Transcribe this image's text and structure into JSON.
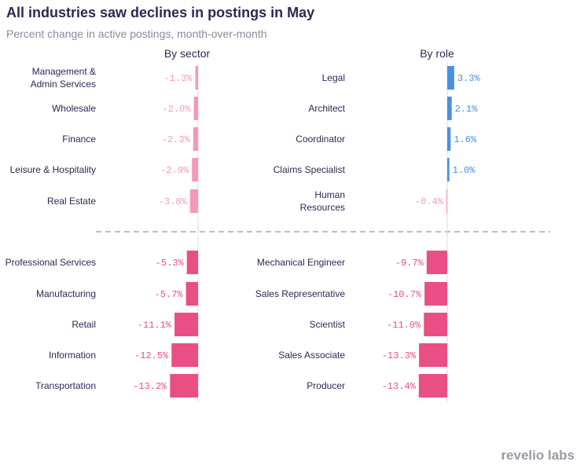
{
  "title": "All industries saw declines in postings in May",
  "subtitle": "Percent change in active postings, month-over-month",
  "logo": "revelio labs",
  "colors": {
    "small_negative": "#f49ab5",
    "large_negative": "#e94f84",
    "positive": "#4a90e2",
    "divider": "#999999",
    "axis": "#dddddd",
    "label": "#2a2a55"
  },
  "chart_data": [
    {
      "type": "bar",
      "orientation": "horizontal",
      "title": "By sector",
      "categories": [
        [
          "Management &",
          "Admin Services"
        ],
        [
          "Wholesale"
        ],
        [
          "Finance"
        ],
        [
          "Leisure & Hospitality"
        ],
        [
          "Real Estate"
        ],
        [
          "Professional Services"
        ],
        [
          "Manufacturing"
        ],
        [
          "Retail"
        ],
        [
          "Information"
        ],
        [
          "Transportation"
        ]
      ],
      "values": [
        -1.3,
        -2.0,
        -2.3,
        -2.9,
        -3.8,
        -5.3,
        -5.7,
        -11.1,
        -12.5,
        -13.2
      ],
      "value_labels": [
        "-1.3%",
        "-2.0%",
        "-2.3%",
        "-2.9%",
        "-3.8%",
        "-5.3%",
        "-5.7%",
        "-11.1%",
        "-12.5%",
        "-13.2%"
      ],
      "groups": [
        "top",
        "top",
        "top",
        "top",
        "top",
        "bottom",
        "bottom",
        "bottom",
        "bottom",
        "bottom"
      ]
    },
    {
      "type": "bar",
      "orientation": "horizontal",
      "title": "By role",
      "categories": [
        [
          "Legal"
        ],
        [
          "Architect"
        ],
        [
          "Coordinator"
        ],
        [
          "Claims Specialist"
        ],
        [
          "Human",
          "Resources"
        ],
        [
          "Mechanical Engineer"
        ],
        [
          "Sales Representative"
        ],
        [
          "Scientist"
        ],
        [
          "Sales Associate"
        ],
        [
          "Producer"
        ]
      ],
      "values": [
        3.3,
        2.1,
        1.6,
        1.0,
        -0.4,
        -9.7,
        -10.7,
        -11.0,
        -13.3,
        -13.4
      ],
      "value_labels": [
        "3.3%",
        "2.1%",
        "1.6%",
        "1.0%",
        "-0.4%",
        "-9.7%",
        "-10.7%",
        "-11.0%",
        "-13.3%",
        "-13.4%"
      ],
      "groups": [
        "top",
        "top",
        "top",
        "top",
        "top",
        "bottom",
        "bottom",
        "bottom",
        "bottom",
        "bottom"
      ]
    }
  ]
}
